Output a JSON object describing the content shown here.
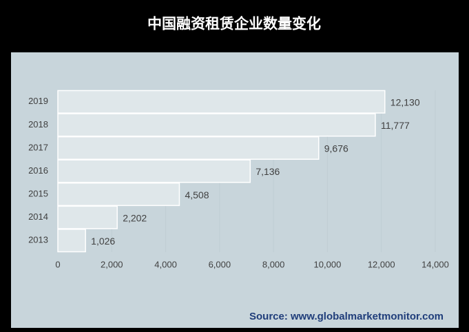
{
  "chart_data": {
    "type": "hbar",
    "title": "中国融资租赁企业数量变化",
    "categories": [
      "2013",
      "2014",
      "2015",
      "2016",
      "2017",
      "2018",
      "2019"
    ],
    "values": [
      1026,
      2202,
      4508,
      7136,
      9676,
      11777,
      12130
    ],
    "value_labels": [
      "1,026",
      "2,202",
      "4,508",
      "7,136",
      "9,676",
      "11,777",
      "12,130"
    ],
    "color": "#dfe7ea",
    "xlim": [
      0,
      14000
    ],
    "xticks": [
      0,
      {
        "value": 2000,
        "label": "2,000"
      },
      {
        "value": 4000,
        "label": "4,000"
      },
      {
        "value": 6000,
        "label": "6,000"
      },
      {
        "value": 8000,
        "label": "8,000"
      },
      {
        "value": 10000,
        "label": "10,000"
      },
      {
        "value": 12000,
        "label": "12,000"
      },
      {
        "value": 14000,
        "label": "14,000"
      }
    ],
    "grid": true,
    "source": "Source: www.globalmarketmonitor.com"
  }
}
